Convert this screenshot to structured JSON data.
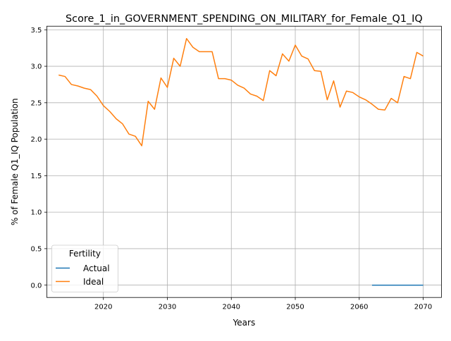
{
  "chart_data": {
    "type": "line",
    "title": "Score_1_in_GOVERNMENT_SPENDING_ON_MILITARY_for_Female_Q1_IQ",
    "xlabel": "Years",
    "ylabel": "% of Female Q1_IQ Population",
    "xlim": [
      2011.15,
      2072.85
    ],
    "ylim": [
      -0.169,
      3.549
    ],
    "xticks": [
      2020,
      2030,
      2040,
      2050,
      2060,
      2070
    ],
    "yticks": [
      0.0,
      0.5,
      1.0,
      1.5,
      2.0,
      2.5,
      3.0,
      3.5
    ],
    "grid": true,
    "legend": {
      "title": "Fertility",
      "placement": "lower-left"
    },
    "series": [
      {
        "name": "Actual",
        "color": "#1f77b4",
        "x": [
          2062,
          2063,
          2064,
          2065,
          2066,
          2067,
          2068,
          2069,
          2070
        ],
        "y": [
          0,
          0,
          0,
          0,
          0,
          0,
          0,
          0,
          0
        ]
      },
      {
        "name": "Ideal",
        "color": "#ff7f0e",
        "x": [
          2013,
          2014,
          2015,
          2016,
          2017,
          2018,
          2019,
          2020,
          2021,
          2022,
          2023,
          2024,
          2025,
          2026,
          2027,
          2028,
          2029,
          2030,
          2031,
          2032,
          2033,
          2034,
          2035,
          2036,
          2037,
          2038,
          2039,
          2040,
          2041,
          2042,
          2043,
          2044,
          2045,
          2046,
          2047,
          2048,
          2049,
          2050,
          2051,
          2052,
          2053,
          2054,
          2055,
          2056,
          2057,
          2058,
          2059,
          2060,
          2061,
          2062,
          2063,
          2064,
          2065,
          2066,
          2067,
          2068,
          2069,
          2070
        ],
        "y": [
          2.88,
          2.86,
          2.75,
          2.73,
          2.7,
          2.68,
          2.59,
          2.46,
          2.38,
          2.28,
          2.21,
          2.07,
          2.04,
          1.91,
          2.52,
          2.41,
          2.84,
          2.71,
          3.11,
          3.0,
          3.38,
          3.26,
          3.2,
          3.2,
          3.2,
          2.83,
          2.83,
          2.81,
          2.74,
          2.7,
          2.62,
          2.59,
          2.53,
          2.94,
          2.87,
          3.17,
          3.07,
          3.29,
          3.14,
          3.1,
          2.94,
          2.93,
          2.54,
          2.8,
          2.44,
          2.66,
          2.64,
          2.58,
          2.54,
          2.48,
          2.41,
          2.4,
          2.56,
          2.5,
          2.86,
          2.83,
          3.19,
          3.14
        ]
      }
    ]
  }
}
